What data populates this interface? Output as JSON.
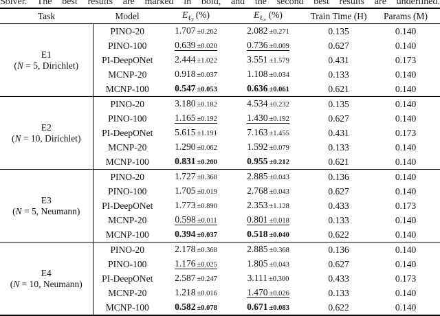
{
  "colors": {
    "text": "#111111",
    "background": "#ffffff",
    "rule": "#000000"
  },
  "caption": "Solver. The best results are marked in bold, and the second best results are underlined.",
  "header": {
    "task": "Task",
    "model": "Model",
    "el2": {
      "base": "E",
      "sub": "ℓ",
      "subsub": "2",
      "unit": "(%)"
    },
    "elinf": {
      "base": "E",
      "sub": "ℓ",
      "subsub": "∞",
      "unit": "(%)"
    },
    "train_time": "Train Time (H)",
    "params": "Params (M)"
  },
  "blocks": [
    {
      "task": {
        "line1": "E1",
        "pre": "(",
        "var": "N",
        "post": " = 5, Dirichlet)"
      },
      "rows": [
        {
          "model": "PINO-20",
          "l2": {
            "v": "1.707",
            "e": "±0.262",
            "style": "normal"
          },
          "linf": {
            "v": "2.082",
            "e": "±0.271",
            "style": "normal"
          },
          "time": "0.135",
          "params": "0.140"
        },
        {
          "model": "PINO-100",
          "l2": {
            "v": "0.639",
            "e": "±0.020",
            "style": "underline"
          },
          "linf": {
            "v": "0.736",
            "e": "±0.009",
            "style": "underline"
          },
          "time": "0.627",
          "params": "0.140"
        },
        {
          "model": "PI-DeepONet",
          "l2": {
            "v": "2.444",
            "e": "±1.022",
            "style": "normal"
          },
          "linf": {
            "v": "3.551",
            "e": "±1.579",
            "style": "normal"
          },
          "time": "0.431",
          "params": "0.173"
        },
        {
          "model": "MCNP-20",
          "l2": {
            "v": "0.918",
            "e": "±0.037",
            "style": "normal"
          },
          "linf": {
            "v": "1.108",
            "e": "±0.034",
            "style": "normal"
          },
          "time": "0.133",
          "params": "0.140"
        },
        {
          "model": "MCNP-100",
          "l2": {
            "v": "0.547",
            "e": "±0.053",
            "style": "bold"
          },
          "linf": {
            "v": "0.636",
            "e": "±0.061",
            "style": "bold"
          },
          "time": "0.621",
          "params": "0.140"
        }
      ]
    },
    {
      "task": {
        "line1": "E2",
        "pre": "(",
        "var": "N",
        "post": " = 10, Dirichlet)"
      },
      "rows": [
        {
          "model": "PINO-20",
          "l2": {
            "v": "3.180",
            "e": "±0.182",
            "style": "normal"
          },
          "linf": {
            "v": "4.534",
            "e": "±0.232",
            "style": "normal"
          },
          "time": "0.135",
          "params": "0.140"
        },
        {
          "model": "PINO-100",
          "l2": {
            "v": "1.165",
            "e": "±0.192",
            "style": "underline"
          },
          "linf": {
            "v": "1.430",
            "e": "±0.192",
            "style": "underline"
          },
          "time": "0.627",
          "params": "0.140"
        },
        {
          "model": "PI-DeepONet",
          "l2": {
            "v": "5.615",
            "e": "±1.191",
            "style": "normal"
          },
          "linf": {
            "v": "7.163",
            "e": "±1.455",
            "style": "normal"
          },
          "time": "0.431",
          "params": "0.173"
        },
        {
          "model": "MCNP-20",
          "l2": {
            "v": "1.290",
            "e": "±0.062",
            "style": "normal"
          },
          "linf": {
            "v": "1.592",
            "e": "±0.079",
            "style": "normal"
          },
          "time": "0.133",
          "params": "0.140"
        },
        {
          "model": "MCNP-100",
          "l2": {
            "v": "0.831",
            "e": "±0.200",
            "style": "bold"
          },
          "linf": {
            "v": "0.955",
            "e": "±0.212",
            "style": "bold"
          },
          "time": "0.621",
          "params": "0.140"
        }
      ]
    },
    {
      "task": {
        "line1": "E3",
        "pre": "(",
        "var": "N",
        "post": " = 5, Neumann)"
      },
      "rows": [
        {
          "model": "PINO-20",
          "l2": {
            "v": "1.727",
            "e": "±0.368",
            "style": "normal"
          },
          "linf": {
            "v": "2.885",
            "e": "±0.043",
            "style": "normal"
          },
          "time": "0.136",
          "params": "0.140"
        },
        {
          "model": "PINO-100",
          "l2": {
            "v": "1.705",
            "e": "±0.019",
            "style": "normal"
          },
          "linf": {
            "v": "2.768",
            "e": "±0.043",
            "style": "normal"
          },
          "time": "0.627",
          "params": "0.140"
        },
        {
          "model": "PI-DeepONet",
          "l2": {
            "v": "1.773",
            "e": "±0.890",
            "style": "normal"
          },
          "linf": {
            "v": "2.353",
            "e": "±1.128",
            "style": "normal"
          },
          "time": "0.433",
          "params": "0.173"
        },
        {
          "model": "MCNP-20",
          "l2": {
            "v": "0.598",
            "e": "±0.011",
            "style": "underline"
          },
          "linf": {
            "v": "0.801",
            "e": "±0.018",
            "style": "underline"
          },
          "time": "0.133",
          "params": "0.140"
        },
        {
          "model": "MCNP-100",
          "l2": {
            "v": "0.394",
            "e": "±0.037",
            "style": "bold"
          },
          "linf": {
            "v": "0.518",
            "e": "±0.040",
            "style": "bold"
          },
          "time": "0.622",
          "params": "0.140"
        }
      ]
    },
    {
      "task": {
        "line1": "E4",
        "pre": "(",
        "var": "N",
        "post": " = 10, Neumann)"
      },
      "rows": [
        {
          "model": "PINO-20",
          "l2": {
            "v": "2.178",
            "e": "±0.368",
            "style": "normal"
          },
          "linf": {
            "v": "2.885",
            "e": "±0.368",
            "style": "normal"
          },
          "time": "0.136",
          "params": "0.140"
        },
        {
          "model": "PINO-100",
          "l2": {
            "v": "1.176",
            "e": "±0.025",
            "style": "underline"
          },
          "linf": {
            "v": "1.805",
            "e": "±0.043",
            "style": "normal"
          },
          "time": "0.627",
          "params": "0.140"
        },
        {
          "model": "PI-DeepONet",
          "l2": {
            "v": "2.587",
            "e": "±0.247",
            "style": "normal"
          },
          "linf": {
            "v": "3.111",
            "e": "±0.300",
            "style": "normal"
          },
          "time": "0.433",
          "params": "0.173"
        },
        {
          "model": "MCNP-20",
          "l2": {
            "v": "1.218",
            "e": "±0.016",
            "style": "normal"
          },
          "linf": {
            "v": "1.470",
            "e": "±0.026",
            "style": "underline"
          },
          "time": "0.133",
          "params": "0.140"
        },
        {
          "model": "MCNP-100",
          "l2": {
            "v": "0.582",
            "e": "±0.078",
            "style": "bold"
          },
          "linf": {
            "v": "0.671",
            "e": "±0.083",
            "style": "bold"
          },
          "time": "0.622",
          "params": "0.140"
        }
      ]
    }
  ]
}
